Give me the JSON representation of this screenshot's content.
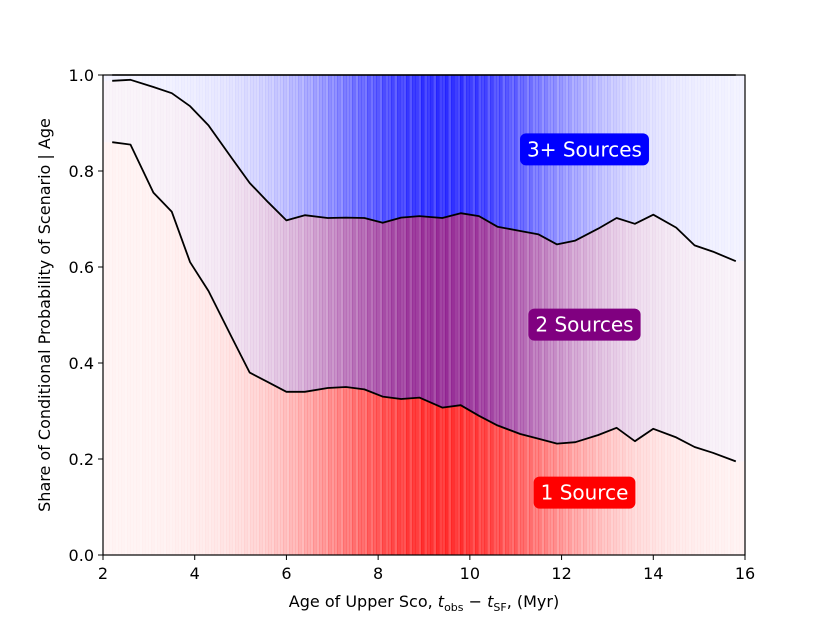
{
  "chart_data": {
    "type": "area",
    "title": "",
    "xlabel": {
      "prefix": "Age of Upper Sco, ",
      "t": "t",
      "sub_obs": "obs",
      "minus": " − ",
      "sub_sf": "SF",
      "suffix": ",  (Myr)"
    },
    "ylabel": "Share of Conditional Probability of Scenario | Age",
    "xlim": [
      2,
      16
    ],
    "ylim": [
      0.0,
      1.0
    ],
    "xticks": [
      2,
      4,
      6,
      8,
      10,
      12,
      14,
      16
    ],
    "xtick_labels": [
      "2",
      "4",
      "6",
      "8",
      "10",
      "12",
      "14",
      "16"
    ],
    "yticks": [
      0.0,
      0.2,
      0.4,
      0.6,
      0.8,
      1.0
    ],
    "ytick_labels": [
      "0.0",
      "0.2",
      "0.4",
      "0.6",
      "0.8",
      "1.0"
    ],
    "x": [
      2.2,
      2.6,
      3.1,
      3.5,
      3.9,
      4.3,
      4.8,
      5.2,
      5.6,
      6.0,
      6.4,
      6.9,
      7.3,
      7.7,
      8.1,
      8.5,
      8.9,
      9.4,
      9.8,
      10.2,
      10.6,
      11.1,
      11.5,
      11.9,
      12.3,
      12.8,
      13.2,
      13.6,
      14.0,
      14.5,
      14.9,
      15.3,
      15.8
    ],
    "series": [
      {
        "name": "1 Source",
        "color": "#ff0000",
        "boundary": [
          0.86,
          0.855,
          0.755,
          0.715,
          0.61,
          0.55,
          0.455,
          0.38,
          0.36,
          0.34,
          0.34,
          0.348,
          0.35,
          0.345,
          0.33,
          0.325,
          0.328,
          0.307,
          0.312,
          0.29,
          0.27,
          0.252,
          0.242,
          0.232,
          0.235,
          0.25,
          0.265,
          0.237,
          0.263,
          0.245,
          0.225,
          0.213,
          0.195
        ]
      },
      {
        "name": "2 Sources",
        "color": "#800080",
        "boundary": [
          0.988,
          0.99,
          0.975,
          0.962,
          0.935,
          0.895,
          0.828,
          0.775,
          0.735,
          0.697,
          0.708,
          0.702,
          0.703,
          0.702,
          0.692,
          0.703,
          0.706,
          0.702,
          0.712,
          0.706,
          0.684,
          0.675,
          0.668,
          0.647,
          0.655,
          0.68,
          0.702,
          0.69,
          0.709,
          0.682,
          0.645,
          0.632,
          0.612
        ]
      },
      {
        "name": "3+ Sources",
        "color": "#0000ff",
        "boundary": [
          1.0,
          1.0,
          1.0,
          1.0,
          1.0,
          1.0,
          1.0,
          1.0,
          1.0,
          1.0,
          1.0,
          1.0,
          1.0,
          1.0,
          1.0,
          1.0,
          1.0,
          1.0,
          1.0,
          1.0,
          1.0,
          1.0,
          1.0,
          1.0,
          1.0,
          1.0,
          1.0,
          1.0,
          1.0,
          1.0,
          1.0,
          1.0,
          1.0
        ]
      }
    ],
    "age_density": {
      "peak_age": 9.4,
      "width": 3.0
    },
    "labels": [
      {
        "text": "3+ Sources",
        "color": "#0000ff",
        "x": 12.5,
        "y": 0.845
      },
      {
        "text": "2 Sources",
        "color": "#800080",
        "x": 12.5,
        "y": 0.48
      },
      {
        "text": "1 Source",
        "color": "#ff0000",
        "x": 12.5,
        "y": 0.13
      }
    ]
  }
}
